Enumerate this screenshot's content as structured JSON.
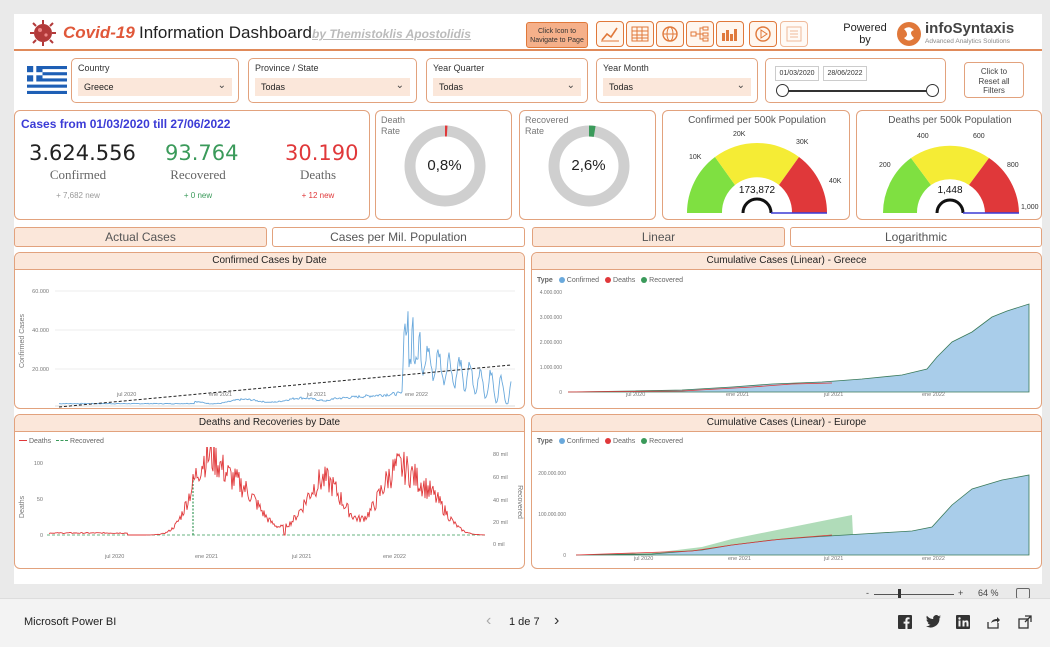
{
  "header": {
    "title_prefix": "Covid-19",
    "title_main": "Information Dashboard",
    "byline": "by Themistoklis Apostolidis",
    "nav_hint": "Click Icon to Navigate to Page",
    "powered": "Powered by",
    "brand": "infoSyntaxis",
    "brand_tag": "Advanced Analytics Solutions",
    "nav_icons": [
      "line-chart-icon",
      "table-icon",
      "globe-icon",
      "tree-icon",
      "bar-chart-icon",
      "play-icon",
      "report-icon"
    ]
  },
  "filters": {
    "country_label": "Country",
    "country_value": "Greece",
    "province_label": "Province / State",
    "province_value": "Todas",
    "quarter_label": "Year Quarter",
    "quarter_value": "Todas",
    "month_label": "Year Month",
    "month_value": "Todas",
    "date_from": "01/03/2020",
    "date_to": "28/06/2022",
    "reset_label": "Click to Reset all Filters"
  },
  "kpis": {
    "heading": "Cases from 01/03/2020 till 27/06/2022",
    "confirmed": "3.624.556",
    "confirmed_label": "Confirmed",
    "confirmed_new": "+ 7,682 new",
    "recovered": "93.764",
    "recovered_label": "Recovered",
    "recovered_new": "+ 0 new",
    "deaths": "30.190",
    "deaths_label": "Deaths",
    "deaths_new": "+ 12 new"
  },
  "rates": {
    "death_label": "Death Rate",
    "death_value": "0,8%",
    "death_fraction": 0.008,
    "recovered_label": "Recovered Rate",
    "recovered_value": "2,6%",
    "recovered_fraction": 0.026
  },
  "gauges": {
    "confirmed": {
      "title": "Confirmed per 500k Population",
      "value": "173,872",
      "ticks": [
        "10K",
        "20K",
        "30K",
        "40K"
      ]
    },
    "deaths": {
      "title": "Deaths per 500k Population",
      "value": "1,448",
      "ticks": [
        "200",
        "400",
        "600",
        "800",
        "1,000"
      ]
    }
  },
  "toggles": {
    "actual": "Actual Cases",
    "per_mil": "Cases per Mil. Population",
    "linear": "Linear",
    "log": "Logarithmic"
  },
  "charts": {
    "confirmed_title": "Confirmed Cases by Date",
    "confirmed_ylabel": "Confirmed Cases",
    "confirmed_yticks": [
      "60.000",
      "40.000",
      "20.000",
      "0"
    ],
    "confirmed_xticks": [
      "jul 2020",
      "ene 2021",
      "jul 2021",
      "ene 2022"
    ],
    "cum_greece_title": "Cumulative Cases (Linear) - Greece",
    "cum_greece_yticks": [
      "4.000.000",
      "3.000.000",
      "2.000.000",
      "1.000.000",
      "0"
    ],
    "cum_xticks": [
      "jul 2020",
      "ene 2021",
      "jul 2021",
      "ene 2022"
    ],
    "deaths_title": "Deaths and Recoveries by Date",
    "deaths_ylabel": "Deaths",
    "recovered_ylabel": "Recovered",
    "deaths_yticks": [
      "100",
      "50",
      "0"
    ],
    "recovered_yticks": [
      "80 mil",
      "60 mil",
      "40 mil",
      "20 mil",
      "0 mil"
    ],
    "deaths_xticks": [
      "jul 2020",
      "ene 2021",
      "jul 2021",
      "ene 2022"
    ],
    "legend_deaths": "Deaths",
    "legend_recovered": "Recovered",
    "cum_europe_title": "Cumulative Cases (Linear) - Europe",
    "cum_europe_yticks": [
      "200.000.000",
      "100.000.000",
      "0"
    ],
    "type_label": "Type",
    "leg_confirmed": "Confirmed",
    "leg_deaths": "Deaths",
    "leg_recovered": "Recovered"
  },
  "zoom": {
    "minus": "-",
    "plus": "+",
    "value": "64 %",
    "level": 0.64
  },
  "footer": {
    "app": "Microsoft Power BI",
    "page": "1 de 7"
  },
  "colors": {
    "accent": "#e0783a",
    "confirmed": "#6aa9dc",
    "deaths": "#e0383a",
    "recovered": "#3a9a5a",
    "kpi_blue": "#3b3bd6"
  }
}
